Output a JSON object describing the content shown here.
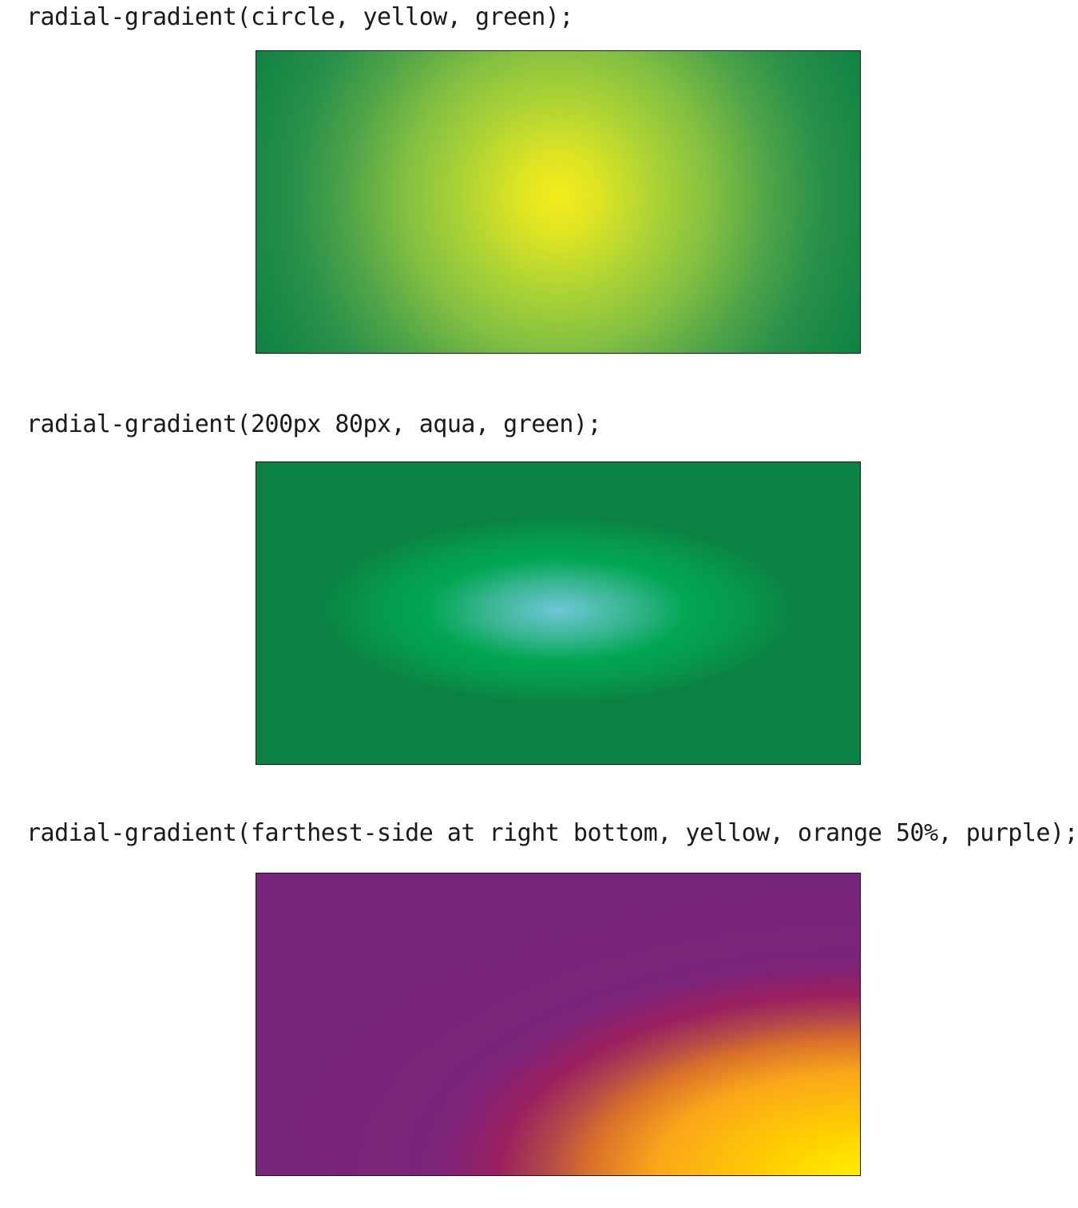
{
  "examples": [
    {
      "code": "radial-gradient(circle, yellow, green);",
      "colors": [
        "#f4ec1a",
        "#0d8242"
      ]
    },
    {
      "code": "radial-gradient(200px 80px, aqua, green);",
      "colors": [
        "#6ec7d6",
        "#0b8242"
      ]
    },
    {
      "code": "radial-gradient(farthest-side at right bottom, yellow, orange 50%, purple);",
      "colors": [
        "#ffee00",
        "#faa61a",
        "#76257b"
      ]
    }
  ]
}
